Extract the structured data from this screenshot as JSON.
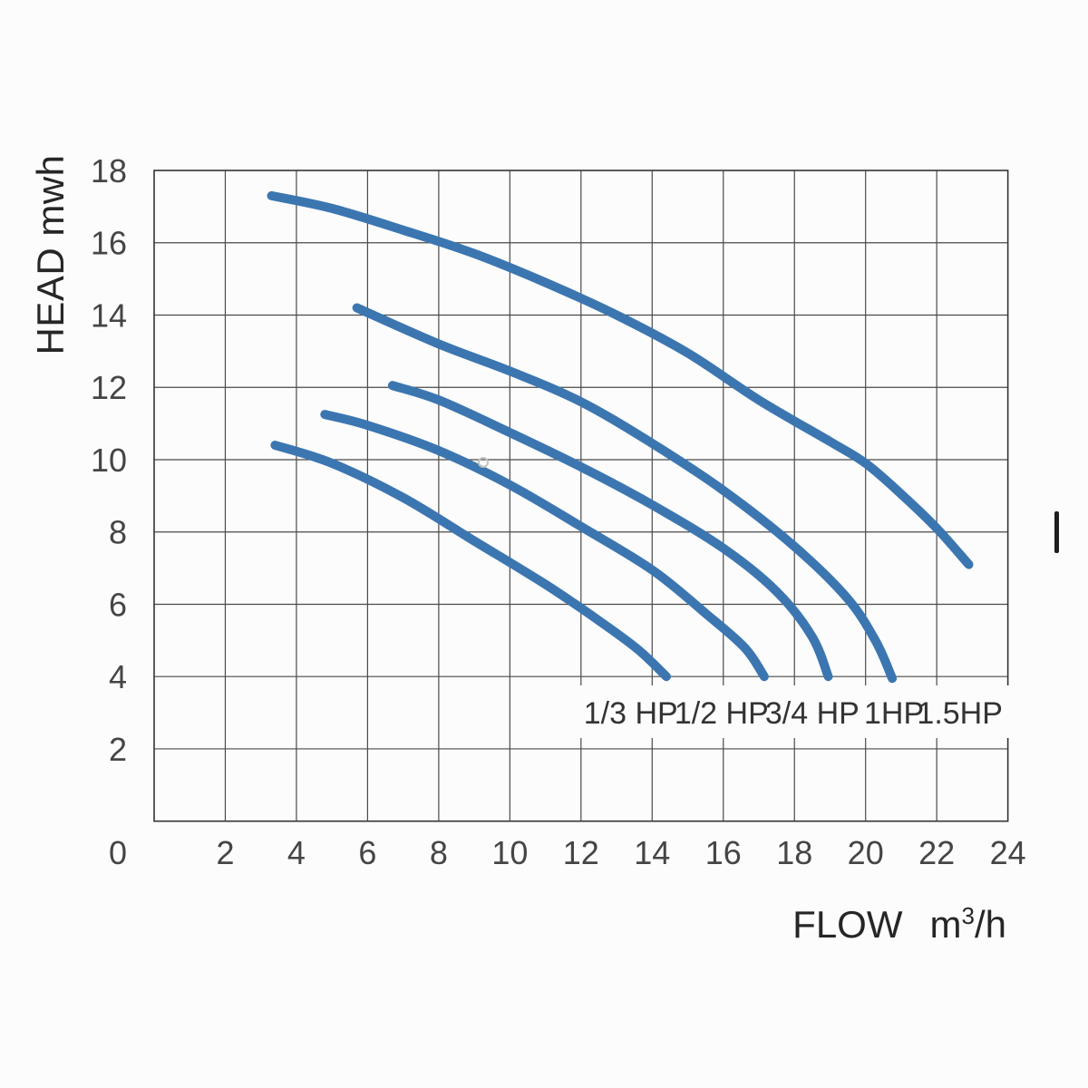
{
  "axes": {
    "y": {
      "title": "HEAD mwh",
      "min": 0,
      "max": 18,
      "grid_step": 2,
      "ticks": [
        18,
        16,
        14,
        12,
        10,
        8,
        6,
        4,
        2
      ],
      "origin_label": "0"
    },
    "x": {
      "title_word": "FLOW",
      "title_unit_base": "m",
      "title_unit_sup": "3",
      "title_unit_suffix": "/h",
      "min": 0,
      "max": 24,
      "grid_step": 2,
      "ticks": [
        2,
        4,
        6,
        8,
        10,
        12,
        14,
        16,
        18,
        20,
        22,
        24
      ]
    }
  },
  "chart_data": {
    "type": "line",
    "title": "",
    "xlabel": "FLOW m³/h",
    "ylabel": "HEAD mwh",
    "xlim": [
      0,
      24
    ],
    "ylim": [
      0,
      18
    ],
    "grid": true,
    "legend_position": "inline-labels",
    "colors": {
      "curve": "#3c76b1",
      "grid": "#4a4a4a",
      "border": "#333333",
      "tick_text": "#454545",
      "label_text": "#333333",
      "background": "#fcfcfc"
    },
    "series": [
      {
        "name": "1/3 HP",
        "label_x": 13.4,
        "label_y": 3.0,
        "points": [
          [
            3.4,
            10.4
          ],
          [
            5,
            9.9
          ],
          [
            7,
            8.95
          ],
          [
            9,
            7.75
          ],
          [
            11,
            6.55
          ],
          [
            12.5,
            5.55
          ],
          [
            13.6,
            4.75
          ],
          [
            14.4,
            4.0
          ]
        ]
      },
      {
        "name": "1/2 HP",
        "label_x": 15.95,
        "label_y": 3.0,
        "points": [
          [
            4.8,
            11.25
          ],
          [
            6,
            10.95
          ],
          [
            8,
            10.25
          ],
          [
            10,
            9.3
          ],
          [
            12,
            8.15
          ],
          [
            14,
            6.95
          ],
          [
            15.5,
            5.75
          ],
          [
            16.6,
            4.8
          ],
          [
            17.15,
            4.0
          ]
        ]
      },
      {
        "name": "3/4 HP",
        "label_x": 18.5,
        "label_y": 3.0,
        "points": [
          [
            6.7,
            12.05
          ],
          [
            8,
            11.65
          ],
          [
            10,
            10.75
          ],
          [
            12,
            9.8
          ],
          [
            14,
            8.75
          ],
          [
            16,
            7.55
          ],
          [
            17.5,
            6.35
          ],
          [
            18.5,
            5.1
          ],
          [
            18.95,
            4.0
          ]
        ]
      },
      {
        "name": "1HP",
        "label_x": 20.8,
        "label_y": 3.0,
        "points": [
          [
            5.7,
            14.2
          ],
          [
            8,
            13.2
          ],
          [
            10,
            12.45
          ],
          [
            12,
            11.6
          ],
          [
            14,
            10.45
          ],
          [
            16,
            9.15
          ],
          [
            18,
            7.6
          ],
          [
            19.5,
            6.15
          ],
          [
            20.3,
            4.95
          ],
          [
            20.75,
            3.95
          ]
        ]
      },
      {
        "name": "1.5HP",
        "label_x": 22.65,
        "label_y": 3.0,
        "points": [
          [
            3.3,
            17.3
          ],
          [
            5,
            16.95
          ],
          [
            7,
            16.35
          ],
          [
            9,
            15.7
          ],
          [
            11,
            14.9
          ],
          [
            13,
            14.0
          ],
          [
            15,
            12.95
          ],
          [
            17,
            11.65
          ],
          [
            19,
            10.5
          ],
          [
            20,
            9.9
          ],
          [
            21,
            9.05
          ],
          [
            22,
            8.1
          ],
          [
            22.9,
            7.1
          ]
        ]
      }
    ]
  }
}
